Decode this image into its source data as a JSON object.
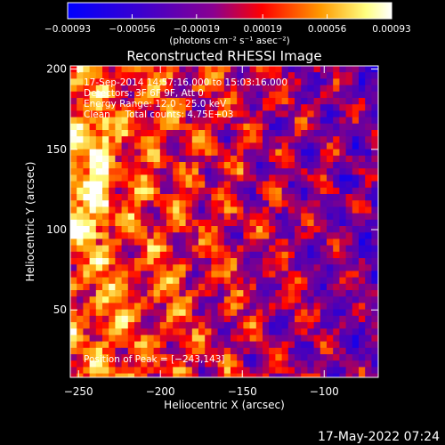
{
  "chart_data": {
    "type": "heatmap",
    "title": "Reconstructed RHESSI Image",
    "xlabel": "Heliocentric X (arcsec)",
    "ylabel": "Heliocentric Y (arcsec)",
    "xlim": [
      -255,
      -67
    ],
    "ylim": [
      8,
      202
    ],
    "x_ticks": [
      -250,
      -200,
      -150,
      -100
    ],
    "y_ticks": [
      50,
      100,
      150,
      200
    ],
    "x_tick_labels": [
      "−250",
      "−200",
      "−150",
      "−100"
    ],
    "y_tick_labels": [
      "50",
      "100",
      "150",
      "200"
    ],
    "colorbar": {
      "ticks": [
        -0.00093,
        -0.00056,
        -0.00019,
        0.00019,
        0.00056,
        0.00093
      ],
      "tick_labels": [
        "−0.00093",
        "−0.00056",
        "−0.00019",
        "0.00019",
        "0.00056",
        "0.00093"
      ],
      "range": [
        -0.00093,
        0.00093
      ],
      "unit_label": "(photons cm⁻² s⁻¹ asec⁻²)",
      "colors": [
        "#0000ff",
        "#5a00c8",
        "#ff0000",
        "#ff9900",
        "#ffffa0",
        "#ffffff"
      ]
    },
    "annotations": [
      "17-Sep-2014 14:57:16.000 to 15:03:16.000",
      "Detectors: 3F 6F 9F, Att 0",
      "Energy Range: 12.0 - 25.0 keV",
      "Clean     Total counts: 4.75E+03"
    ],
    "peak_label": "Position of Peak = [−243,143]",
    "peak_position": [
      -243,
      143
    ],
    "grid": false
  },
  "footer": {
    "date": "17-May-2022 07:24"
  }
}
